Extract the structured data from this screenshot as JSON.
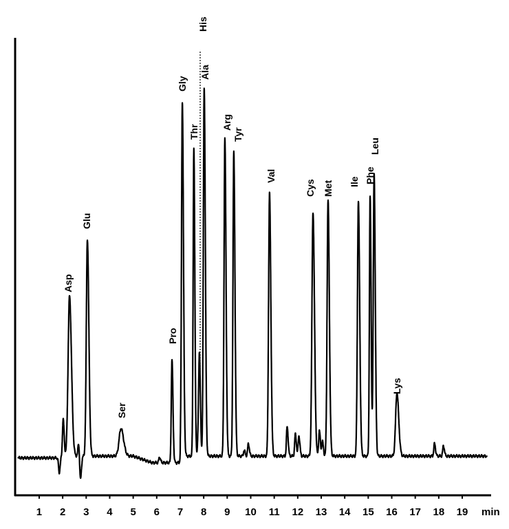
{
  "chart_data": {
    "type": "line",
    "title": "",
    "xlabel": "",
    "ylabel": "",
    "x_unit": "min",
    "xlim": [
      0,
      20
    ],
    "x_ticks": [
      1,
      2,
      3,
      4,
      5,
      6,
      7,
      8,
      9,
      10,
      11,
      12,
      13,
      14,
      15,
      16,
      17,
      18,
      19
    ],
    "y_ticks": [],
    "y_scale": "relative intensity (unlabeled, % of tallest peak)",
    "grid": false,
    "line_color": "#000000",
    "peaks": [
      {
        "name": "Asp",
        "time": 2.29,
        "intensity": 43.5
      },
      {
        "name": "Glu",
        "time": 3.05,
        "intensity": 59
      },
      {
        "name": "Ser",
        "time": 4.48,
        "intensity": 7.5
      },
      {
        "name": "Pro",
        "time": 6.65,
        "intensity": 28
      },
      {
        "name": "Gly",
        "time": 7.09,
        "intensity": 96.4
      },
      {
        "name": "Thr",
        "time": 7.58,
        "intensity": 83.7
      },
      {
        "name": "His",
        "time": 7.82,
        "intensity": 23,
        "marker": "dotted-line"
      },
      {
        "name": "Ala",
        "time": 8.02,
        "intensity": 100
      },
      {
        "name": "Arg",
        "time": 8.9,
        "intensity": 86.4
      },
      {
        "name": "Tyr",
        "time": 9.28,
        "intensity": 82.6
      },
      {
        "name": "Val",
        "time": 10.8,
        "intensity": 71.4
      },
      {
        "name": "Cys",
        "time": 12.65,
        "intensity": 66.4
      },
      {
        "name": "Met",
        "time": 13.29,
        "intensity": 69.3
      },
      {
        "name": "Ile",
        "time": 14.58,
        "intensity": 69.2
      },
      {
        "name": "Phe",
        "time": 15.08,
        "intensity": 70.3
      },
      {
        "name": "Leu",
        "time": 15.25,
        "intensity": 77
      },
      {
        "name": "Lys",
        "time": 16.22,
        "intensity": 17.2
      }
    ],
    "minor_peaks": [
      {
        "time": 1.85,
        "intensity": -4.5
      },
      {
        "time": 2.02,
        "intensity": 10
      },
      {
        "time": 2.68,
        "intensity": 3.7
      },
      {
        "time": 2.75,
        "intensity": -7
      },
      {
        "time": 6.12,
        "intensity": 1.5
      },
      {
        "time": 7.78,
        "intensity": 8
      },
      {
        "time": 9.72,
        "intensity": 1.5
      },
      {
        "time": 9.9,
        "intensity": 3.4
      },
      {
        "time": 11.55,
        "intensity": 8
      },
      {
        "time": 11.9,
        "intensity": 6
      },
      {
        "time": 12.05,
        "intensity": 5.5
      },
      {
        "time": 12.92,
        "intensity": 7
      },
      {
        "time": 13.05,
        "intensity": 4
      },
      {
        "time": 17.82,
        "intensity": 3.4
      },
      {
        "time": 18.2,
        "intensity": 2.8
      }
    ]
  }
}
